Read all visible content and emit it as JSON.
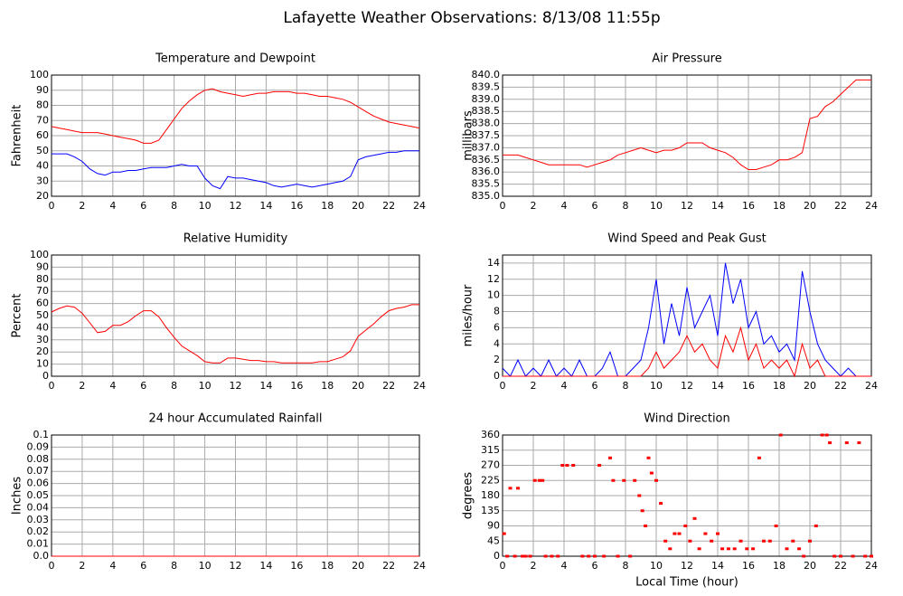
{
  "title": "Lafayette Weather Observations: 8/13/08 11:55p",
  "chart_data": [
    {
      "type": "line",
      "title": "Temperature and Dewpoint",
      "ylabel": "Fahrenheit",
      "x": [
        0,
        0.5,
        1,
        1.5,
        2,
        2.5,
        3,
        3.5,
        4,
        4.5,
        5,
        5.5,
        6,
        6.5,
        7,
        7.5,
        8,
        8.5,
        9,
        9.5,
        10,
        10.5,
        11,
        11.5,
        12,
        12.5,
        13,
        13.5,
        14,
        14.5,
        15,
        15.5,
        16,
        16.5,
        17,
        17.5,
        18,
        18.5,
        19,
        19.5,
        20,
        20.5,
        21,
        21.5,
        22,
        22.5,
        23,
        23.5,
        24
      ],
      "series": [
        {
          "color": "#ff0000",
          "values": [
            66,
            65,
            64,
            63,
            62,
            62,
            62,
            61,
            60,
            59,
            58,
            57,
            55,
            55,
            57,
            64,
            71,
            78,
            83,
            87,
            90,
            91,
            89,
            88,
            87,
            86,
            87,
            88,
            88,
            89,
            89,
            89,
            88,
            88,
            87,
            86,
            86,
            85,
            84,
            82,
            79,
            76,
            73,
            71,
            69,
            68,
            67,
            66,
            65
          ]
        },
        {
          "color": "#0000ff",
          "values": [
            48,
            48,
            48,
            46,
            43,
            38,
            35,
            34,
            36,
            36,
            37,
            37,
            38,
            39,
            39,
            39,
            40,
            41,
            40,
            40,
            32,
            27,
            25,
            33,
            32,
            32,
            31,
            30,
            29,
            27,
            26,
            27,
            28,
            27,
            26,
            27,
            28,
            29,
            30,
            33,
            44,
            46,
            47,
            48,
            49,
            49,
            50,
            50,
            50
          ]
        }
      ],
      "xlim": [
        0,
        24
      ],
      "xticks": [
        0,
        2,
        4,
        6,
        8,
        10,
        12,
        14,
        16,
        18,
        20,
        22,
        24
      ],
      "ylim": [
        20,
        100
      ],
      "yticks": [
        20,
        30,
        40,
        50,
        60,
        70,
        80,
        90,
        100
      ],
      "grid": true
    },
    {
      "type": "line",
      "title": "Air Pressure",
      "ylabel": "millibars",
      "x": [
        0,
        0.5,
        1,
        1.5,
        2,
        2.5,
        3,
        3.5,
        4,
        4.5,
        5,
        5.5,
        6,
        6.5,
        7,
        7.5,
        8,
        8.5,
        9,
        9.5,
        10,
        10.5,
        11,
        11.5,
        12,
        12.5,
        13,
        13.5,
        14,
        14.5,
        15,
        15.5,
        16,
        16.5,
        17,
        17.5,
        18,
        18.5,
        19,
        19.5,
        20,
        20.5,
        21,
        21.5,
        22,
        22.5,
        23,
        23.5,
        24
      ],
      "series": [
        {
          "color": "#ff0000",
          "values": [
            836.7,
            836.7,
            836.7,
            836.6,
            836.5,
            836.4,
            836.3,
            836.3,
            836.3,
            836.3,
            836.3,
            836.2,
            836.3,
            836.4,
            836.5,
            836.7,
            836.8,
            836.9,
            837.0,
            836.9,
            836.8,
            836.9,
            836.9,
            837.0,
            837.2,
            837.2,
            837.2,
            837.0,
            836.9,
            836.8,
            836.6,
            836.3,
            836.1,
            836.1,
            836.2,
            836.3,
            836.5,
            836.5,
            836.6,
            836.8,
            838.2,
            838.3,
            838.7,
            838.9,
            839.2,
            839.5,
            839.8,
            839.8,
            839.8
          ]
        }
      ],
      "xlim": [
        0,
        24
      ],
      "xticks": [
        0,
        2,
        4,
        6,
        8,
        10,
        12,
        14,
        16,
        18,
        20,
        22,
        24
      ],
      "ylim": [
        835,
        840
      ],
      "yticks": [
        {
          "value": 835,
          "label": "835.0"
        },
        835.5,
        {
          "value": 836,
          "label": "836.0"
        },
        836.5,
        {
          "value": 837,
          "label": "837.0"
        },
        837.5,
        {
          "value": 838,
          "label": "838.0"
        },
        838.5,
        {
          "value": 839,
          "label": "839.0"
        },
        839.5,
        {
          "value": 840,
          "label": "840.0"
        }
      ],
      "grid": true
    },
    {
      "type": "line",
      "title": "Relative Humidity",
      "ylabel": "Percent",
      "x": [
        0,
        0.5,
        1,
        1.5,
        2,
        2.5,
        3,
        3.5,
        4,
        4.5,
        5,
        5.5,
        6,
        6.5,
        7,
        7.5,
        8,
        8.5,
        9,
        9.5,
        10,
        10.5,
        11,
        11.5,
        12,
        12.5,
        13,
        13.5,
        14,
        14.5,
        15,
        15.5,
        16,
        16.5,
        17,
        17.5,
        18,
        18.5,
        19,
        19.5,
        20,
        20.5,
        21,
        21.5,
        22,
        22.5,
        23,
        23.5,
        24
      ],
      "series": [
        {
          "color": "#ff0000",
          "values": [
            53,
            56,
            58,
            57,
            52,
            44,
            36,
            37,
            42,
            42,
            45,
            50,
            54,
            54,
            49,
            40,
            32,
            25,
            21,
            17,
            12,
            11,
            11,
            15,
            15,
            14,
            13,
            13,
            12,
            12,
            11,
            11,
            11,
            11,
            11,
            12,
            12,
            14,
            16,
            21,
            33,
            38,
            43,
            49,
            54,
            56,
            57,
            59,
            59
          ]
        }
      ],
      "xlim": [
        0,
        24
      ],
      "xticks": [
        0,
        2,
        4,
        6,
        8,
        10,
        12,
        14,
        16,
        18,
        20,
        22,
        24
      ],
      "ylim": [
        0,
        100
      ],
      "yticks": [
        0,
        10,
        20,
        30,
        40,
        50,
        60,
        70,
        80,
        90,
        100
      ],
      "grid": true
    },
    {
      "type": "line",
      "title": "Wind Speed and Peak Gust",
      "ylabel": "miles/hour",
      "x": [
        0,
        0.5,
        1,
        1.5,
        2,
        2.5,
        3,
        3.5,
        4,
        4.5,
        5,
        5.5,
        6,
        6.5,
        7,
        7.5,
        8,
        8.5,
        9,
        9.5,
        10,
        10.5,
        11,
        11.5,
        12,
        12.5,
        13,
        13.5,
        14,
        14.5,
        15,
        15.5,
        16,
        16.5,
        17,
        17.5,
        18,
        18.5,
        19,
        19.5,
        20,
        20.5,
        21,
        21.5,
        22,
        22.5,
        23,
        23.5,
        24
      ],
      "series": [
        {
          "color": "#0000ff",
          "values": [
            1,
            0,
            2,
            0,
            1,
            0,
            2,
            0,
            1,
            0,
            2,
            0,
            0,
            1,
            3,
            0,
            0,
            1,
            2,
            6,
            12,
            4,
            9,
            5,
            11,
            6,
            8,
            10,
            5,
            14,
            9,
            12,
            6,
            8,
            4,
            5,
            3,
            4,
            2,
            13,
            8,
            4,
            2,
            1,
            0,
            1,
            0,
            0,
            0
          ]
        },
        {
          "color": "#ff0000",
          "values": [
            0,
            0,
            0,
            0,
            0,
            0,
            0,
            0,
            0,
            0,
            0,
            0,
            0,
            0,
            0,
            0,
            0,
            0,
            0,
            1,
            3,
            1,
            2,
            3,
            5,
            3,
            4,
            2,
            1,
            5,
            3,
            6,
            2,
            4,
            1,
            2,
            1,
            2,
            0,
            4,
            1,
            2,
            0,
            0,
            0,
            0,
            0,
            0,
            0
          ]
        }
      ],
      "xlim": [
        0,
        24
      ],
      "xticks": [
        0,
        2,
        4,
        6,
        8,
        10,
        12,
        14,
        16,
        18,
        20,
        22,
        24
      ],
      "ylim": [
        0,
        15
      ],
      "yticks": [
        0,
        2,
        4,
        6,
        8,
        10,
        12,
        14
      ],
      "grid": true
    },
    {
      "type": "line",
      "title": "24 hour Accumulated Rainfall",
      "ylabel": "Inches",
      "x": [
        0,
        24
      ],
      "series": [
        {
          "color": "#ff0000",
          "values": [
            0,
            0
          ]
        }
      ],
      "xlim": [
        0,
        24
      ],
      "xticks": [
        0,
        2,
        4,
        6,
        8,
        10,
        12,
        14,
        16,
        18,
        20,
        22,
        24
      ],
      "ylim": [
        0,
        0.1
      ],
      "yticks": [
        {
          "value": 0,
          "label": "0.0"
        },
        0.01,
        0.02,
        0.03,
        0.04,
        0.05,
        0.06,
        0.07,
        0.08,
        0.09,
        0.1
      ],
      "grid": true
    },
    {
      "type": "scatter",
      "title": "Wind Direction",
      "ylabel": "degrees",
      "xlabel": "Local Time (hour)",
      "x": [
        0.1,
        0.3,
        0.5,
        0.8,
        1.0,
        1.3,
        1.5,
        1.8,
        2.1,
        2.4,
        2.6,
        2.8,
        3.2,
        3.6,
        3.9,
        4.2,
        4.6,
        5.2,
        5.6,
        6.0,
        6.3,
        6.6,
        7.0,
        7.2,
        7.5,
        7.9,
        8.3,
        8.6,
        8.9,
        9.1,
        9.3,
        9.5,
        9.7,
        10.0,
        10.3,
        10.6,
        10.9,
        11.2,
        11.5,
        11.9,
        12.2,
        12.5,
        12.8,
        13.2,
        13.6,
        14.0,
        14.3,
        14.7,
        15.1,
        15.5,
        15.9,
        16.3,
        16.7,
        17.0,
        17.4,
        17.8,
        18.1,
        18.5,
        18.9,
        19.3,
        19.6,
        20.0,
        20.4,
        20.8,
        21.1,
        21.3,
        21.6,
        22.0,
        22.4,
        22.8,
        23.2,
        23.6,
        24
      ],
      "series": [
        {
          "color": "#ff0000",
          "values": [
            67,
            0,
            202,
            0,
            202,
            0,
            0,
            0,
            225,
            225,
            225,
            0,
            0,
            0,
            270,
            270,
            270,
            0,
            0,
            0,
            270,
            0,
            292,
            225,
            0,
            225,
            0,
            225,
            180,
            135,
            90,
            292,
            247,
            225,
            157,
            45,
            22,
            67,
            67,
            90,
            45,
            112,
            22,
            67,
            45,
            67,
            22,
            22,
            22,
            45,
            22,
            22,
            292,
            45,
            45,
            90,
            360,
            22,
            45,
            22,
            0,
            45,
            90,
            360,
            360,
            337,
            0,
            0,
            337,
            0,
            337,
            0,
            0
          ]
        }
      ],
      "xlim": [
        0,
        24
      ],
      "xticks": [
        0,
        2,
        4,
        6,
        8,
        10,
        12,
        14,
        16,
        18,
        20,
        22,
        24
      ],
      "ylim": [
        0,
        360
      ],
      "yticks": [
        0,
        45,
        90,
        135,
        180,
        225,
        270,
        315,
        360
      ],
      "grid": true
    }
  ]
}
